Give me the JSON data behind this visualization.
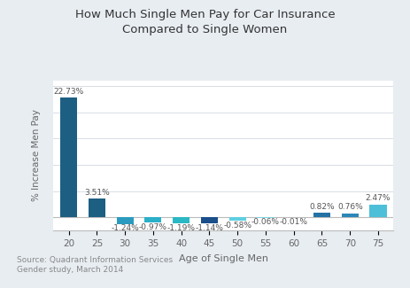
{
  "title": "How Much Single Men Pay for Car Insurance\nCompared to Single Women",
  "xlabel": "Age of Single Men",
  "ylabel": "% Increase Men Pay",
  "source_text": "Source: Quadrant Information Services\nGender study, March 2014",
  "categories": [
    "20",
    "25",
    "30",
    "35",
    "40",
    "45",
    "50",
    "55",
    "60",
    "65",
    "70",
    "75"
  ],
  "values": [
    22.73,
    3.51,
    -1.24,
    -0.97,
    -1.19,
    -1.14,
    -0.58,
    -0.06,
    -0.01,
    0.82,
    0.76,
    2.47
  ],
  "labels": [
    "22.73%",
    "3.51%",
    "-1.24%",
    "-0.97%",
    "-1.19%",
    "-1.14%",
    "-0.58%",
    "-0.06%",
    "-0.01%",
    "0.82%",
    "0.76%",
    "2.47%"
  ],
  "bar_colors": [
    "#1d5f82",
    "#1d5f82",
    "#2a9bbf",
    "#2ab0c8",
    "#2ab8c4",
    "#1a4f8a",
    "#5ecfe0",
    "#7fd4e4",
    "#8adbe8",
    "#2472a4",
    "#2d86b8",
    "#4dbfd8"
  ],
  "outer_bg": "#e8edf2",
  "plot_bg": "#ffffff",
  "grid_color": "#d8dde5",
  "ylim": [
    -2.5,
    26
  ],
  "yticks": [
    0,
    5,
    10,
    15,
    20,
    25
  ],
  "figsize": [
    4.63,
    3.25
  ],
  "dpi": 100,
  "title_fontsize": 9.5,
  "label_fontsize": 6.5,
  "tick_fontsize": 7.5,
  "ylabel_fontsize": 7.5,
  "xlabel_fontsize": 8,
  "source_fontsize": 6.5
}
